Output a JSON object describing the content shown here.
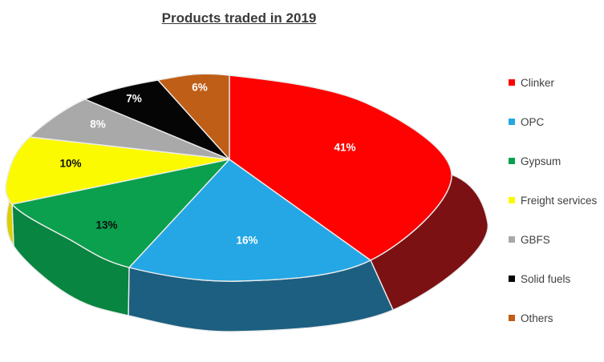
{
  "chart_data": {
    "type": "pie",
    "projection": "3d",
    "title": "Products traded in 2019",
    "value_format": "percent",
    "start_angle": "12-oclock-clockwise",
    "grid": false,
    "background": "#FFFFFF",
    "title_color": "#3A3A3A",
    "legend": {
      "position": "right",
      "text_color": "#404040"
    },
    "categories": [
      "Clinker",
      "OPC",
      "Gypsum",
      "Freight services",
      "GBFS",
      "Solid fuels",
      "Others"
    ],
    "values": [
      41,
      16,
      13,
      10,
      8,
      7,
      6
    ],
    "slices": [
      {
        "label": "Clinker",
        "value": 41,
        "display": "41%",
        "color": "#FE0101",
        "side_color": "#7C1113",
        "label_color": "#FFFFFF"
      },
      {
        "label": "OPC",
        "value": 16,
        "display": "16%",
        "color": "#24A7E4",
        "side_color": "#1C5F80",
        "label_color": "#FFFFFF"
      },
      {
        "label": "Gypsum",
        "value": 13,
        "display": "13%",
        "color": "#0AA04D",
        "side_color": "#088540",
        "label_color": "#0D0D0D"
      },
      {
        "label": "Freight services",
        "value": 10,
        "display": "10%",
        "color": "#FCFA01",
        "side_color": "#DACF04",
        "label_color": "#0D0D0D"
      },
      {
        "label": "GBFS",
        "value": 8,
        "display": "8%",
        "color": "#A9A9A9",
        "side_color": "#8F8F8F",
        "label_color": "#FFFFFF"
      },
      {
        "label": "Solid fuels",
        "value": 7,
        "display": "7%",
        "color": "#050505",
        "side_color": "#000000",
        "label_color": "#FFFFFF"
      },
      {
        "label": "Others",
        "value": 6,
        "display": "6%",
        "color": "#BF5E17",
        "side_color": "#8C440E",
        "label_color": "#FFFFFF"
      }
    ]
  }
}
